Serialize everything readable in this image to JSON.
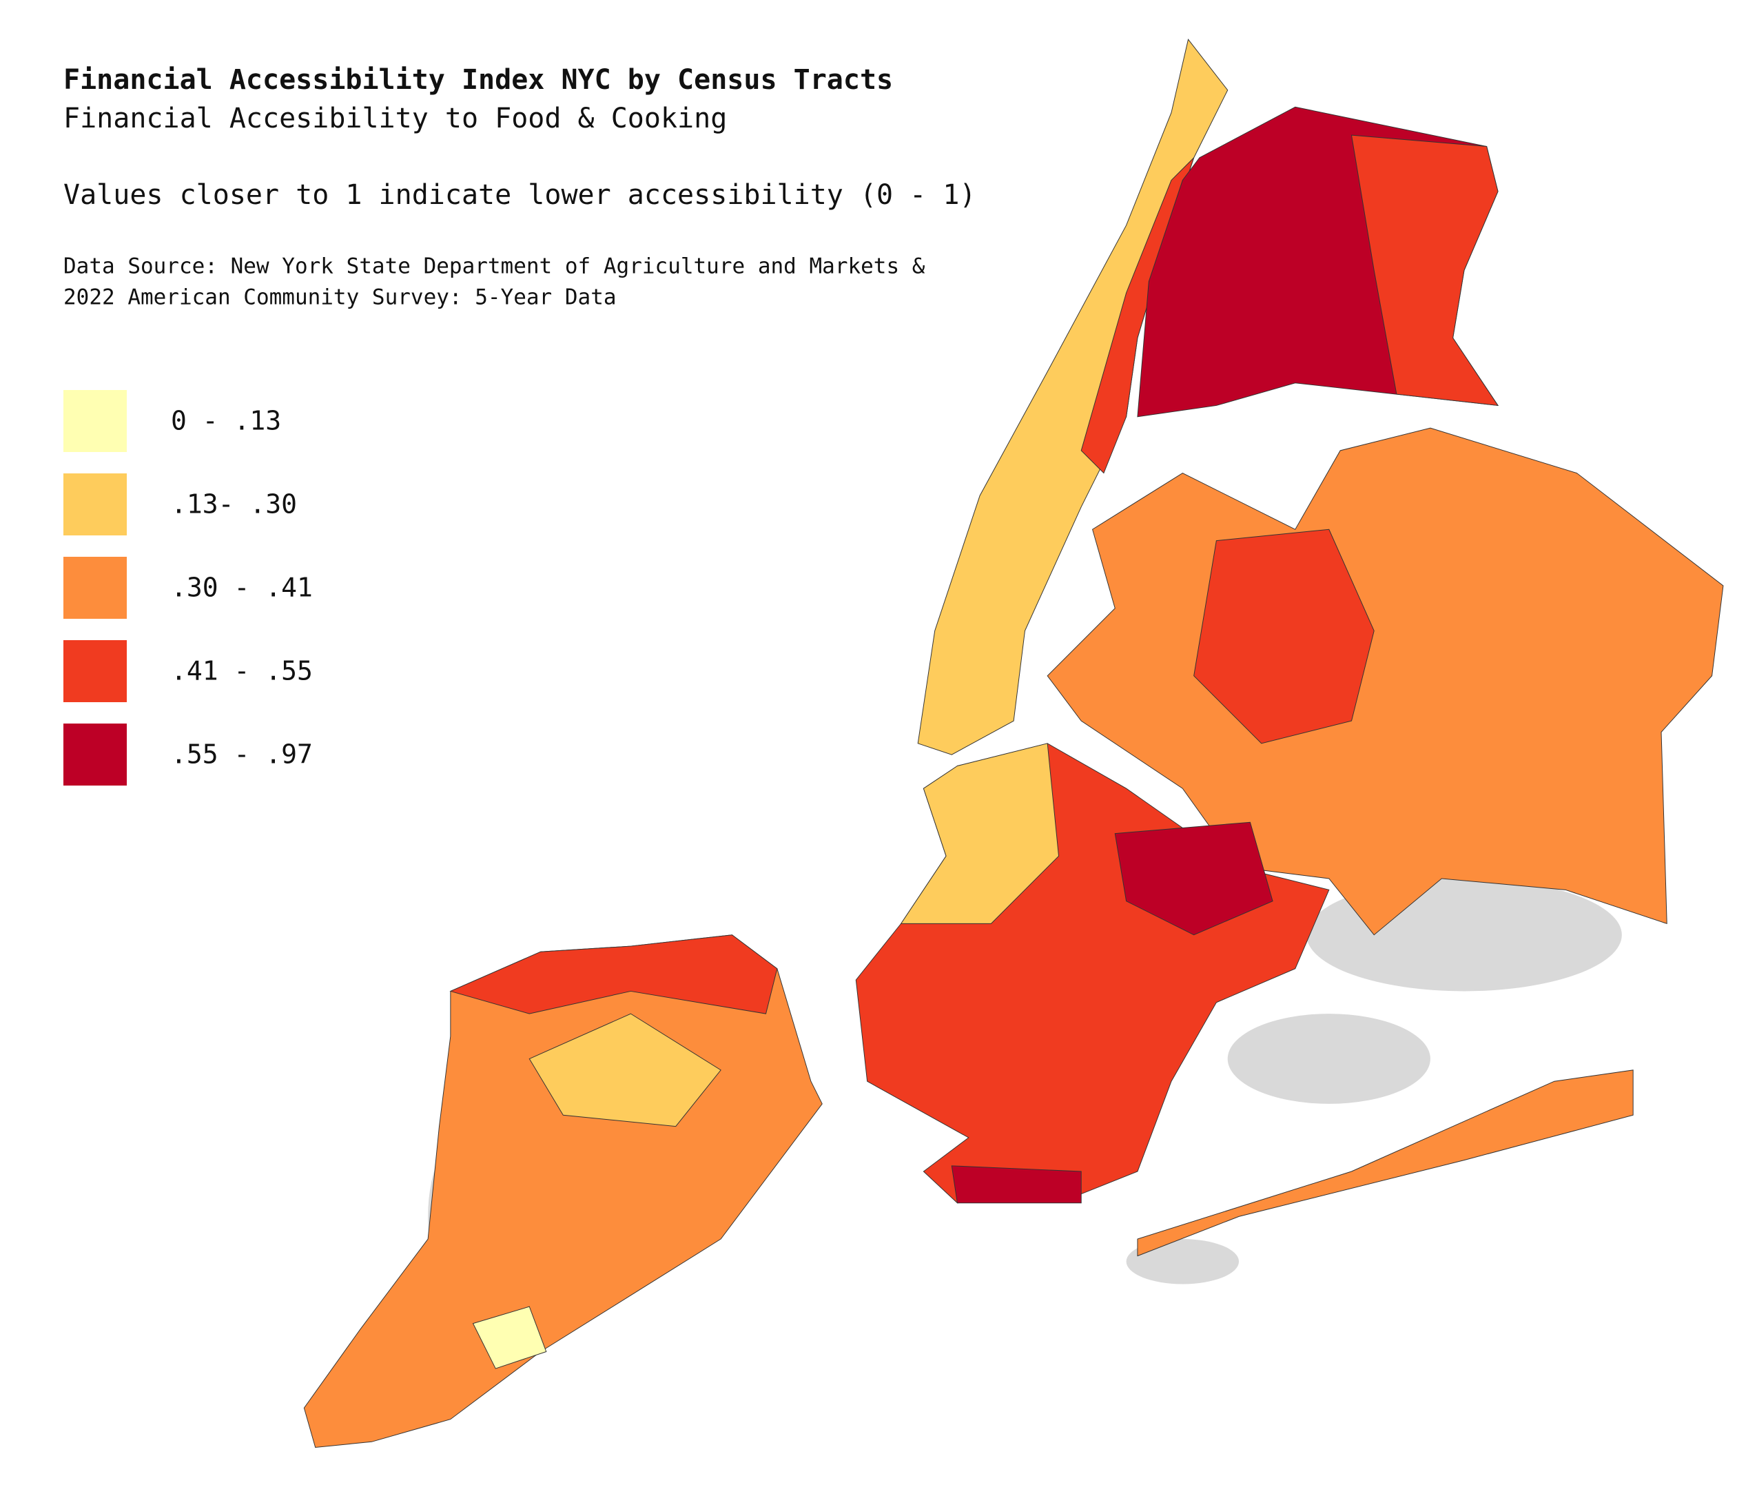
{
  "header": {
    "title": "Financial Accessibility Index NYC by Census Tracts",
    "subtitle": "Financial Accesibility to Food & Cooking",
    "note": "Values closer to 1 indicate lower accessibility (0 - 1)",
    "source": [
      "Data Source: New York State Department of Agriculture and Markets &",
      "2022 American Community Survey: 5-Year Data"
    ]
  },
  "legend": {
    "items": [
      {
        "label": "0 - .13",
        "color": "#ffffb2"
      },
      {
        "label": ".13- .30",
        "color": "#fecc5c"
      },
      {
        "label": ".30 - .41",
        "color": "#fd8d3c"
      },
      {
        "label": ".41 - .55",
        "color": "#f03b20"
      },
      {
        "label": ".55 - .97",
        "color": "#bd0026"
      }
    ]
  }
}
